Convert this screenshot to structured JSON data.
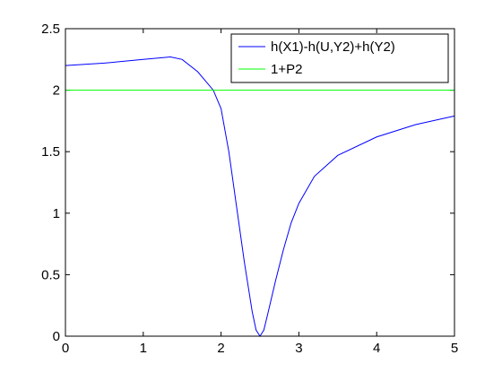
{
  "chart_data": {
    "type": "line",
    "series": [
      {
        "name": "h(X1)-h(U,Y2)+h(Y2)",
        "color": "#0000ff",
        "x": [
          0,
          0.5,
          1,
          1.35,
          1.5,
          1.7,
          1.9,
          2.0,
          2.1,
          2.2,
          2.3,
          2.4,
          2.45,
          2.5,
          2.55,
          2.6,
          2.7,
          2.8,
          2.9,
          3.0,
          3.2,
          3.5,
          4,
          4.5,
          5
        ],
        "values": [
          2.2,
          2.22,
          2.25,
          2.27,
          2.25,
          2.15,
          2.0,
          1.85,
          1.5,
          1.05,
          0.6,
          0.2,
          0.05,
          0,
          0.05,
          0.18,
          0.45,
          0.7,
          0.92,
          1.08,
          1.3,
          1.47,
          1.62,
          1.72,
          1.79
        ]
      },
      {
        "name": "1+P2",
        "color": "#00ff00",
        "x": [
          0,
          5
        ],
        "values": [
          2,
          2
        ]
      }
    ],
    "xlim": [
      0,
      5
    ],
    "xticks": [
      0,
      1,
      2,
      3,
      4,
      5
    ],
    "ylim": [
      0,
      2.5
    ],
    "yticks": [
      0,
      0.5,
      1,
      1.5,
      2,
      2.5
    ],
    "legend": "upper right"
  }
}
